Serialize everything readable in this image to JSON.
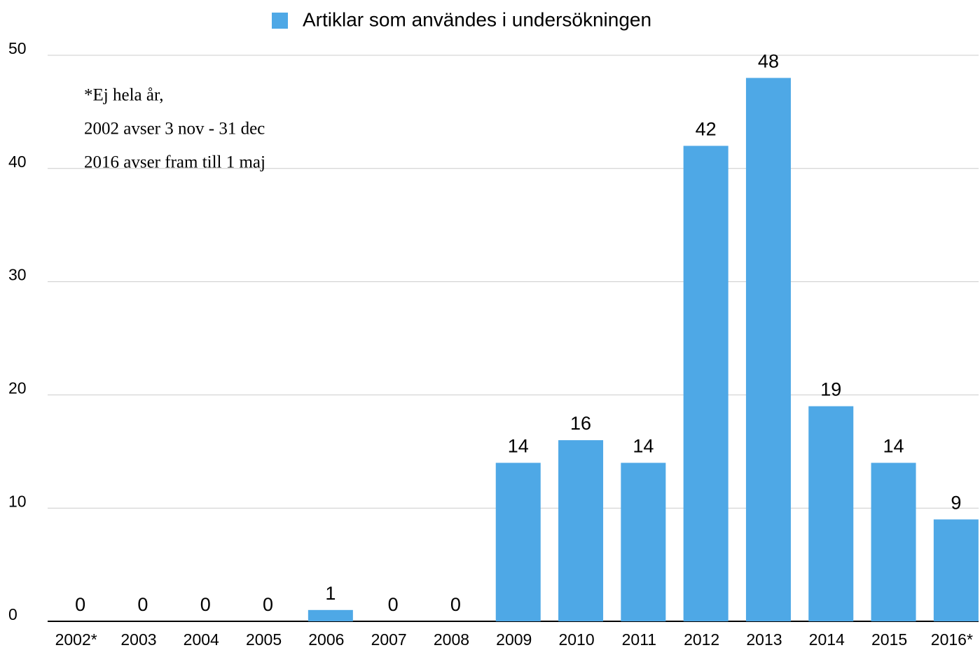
{
  "chart_data": {
    "type": "bar",
    "categories": [
      "2002*",
      "2003",
      "2004",
      "2005",
      "2006",
      "2007",
      "2008",
      "2009",
      "2010",
      "2011",
      "2012",
      "2013",
      "2014",
      "2015",
      "2016*"
    ],
    "series": [
      {
        "name": "Artiklar som användes i undersökningen",
        "color": "#4ea8e6",
        "values": [
          0,
          0,
          0,
          0,
          1,
          0,
          0,
          14,
          16,
          14,
          42,
          48,
          19,
          14,
          9
        ]
      }
    ],
    "ylim": [
      0,
      50
    ],
    "yticks": [
      0,
      10,
      20,
      30,
      40,
      50
    ],
    "grid": true,
    "legend": "top",
    "annotation": [
      "*Ej hela år,",
      "2002 avser 3 nov - 31 dec",
      "2016 avser fram till 1 maj"
    ]
  }
}
